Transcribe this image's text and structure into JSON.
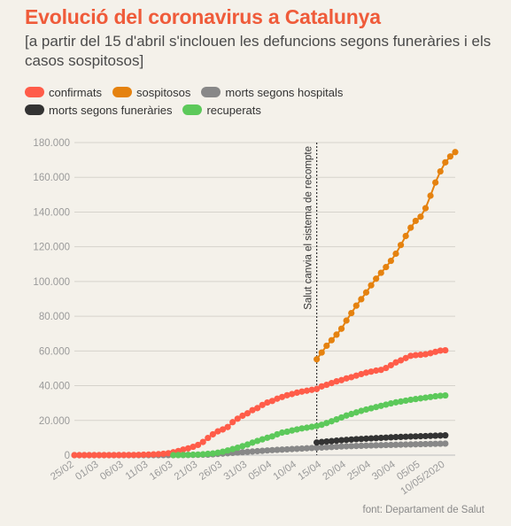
{
  "title": "Evolució del coronavirus a Catalunya",
  "subtitle": "[a partir del 15 d'abril s'inclouen les defuncions segons funeràries i els casos sospitosos]",
  "source": "font: Departament de Salut",
  "chart_data": {
    "type": "line",
    "title": "Evolució del coronavirus a Catalunya",
    "x_start": "25/02/2020",
    "x_end": "10/05/2020",
    "x_tick_labels": [
      "25/02",
      "01/03",
      "06/03",
      "11/03",
      "16/03",
      "21/03",
      "26/03",
      "31/03",
      "05/04",
      "10/04",
      "15/04",
      "20/04",
      "25/04",
      "30/04",
      "05/05",
      "10/05/2020"
    ],
    "y_tick_labels": [
      "0",
      "20.000",
      "40.000",
      "60.000",
      "80.000",
      "100.000",
      "120.000",
      "140.000",
      "160.000",
      "180.000"
    ],
    "ylim": [
      0,
      180000
    ],
    "grid": "horizontal",
    "legend_position": "top-left",
    "annotation": {
      "text": "Salut canvia el sistema de recompte",
      "x": "14/04"
    },
    "series": [
      {
        "name": "confirmats",
        "color": "#ff5c49",
        "points": [
          [
            "25/02",
            1
          ],
          [
            "26/02",
            2
          ],
          [
            "27/02",
            3
          ],
          [
            "28/02",
            4
          ],
          [
            "29/02",
            6
          ],
          [
            "01/03",
            10
          ],
          [
            "02/03",
            13
          ],
          [
            "03/03",
            18
          ],
          [
            "04/03",
            30
          ],
          [
            "05/03",
            45
          ],
          [
            "06/03",
            60
          ],
          [
            "07/03",
            75
          ],
          [
            "08/03",
            100
          ],
          [
            "09/03",
            160
          ],
          [
            "10/03",
            250
          ],
          [
            "11/03",
            320
          ],
          [
            "12/03",
            430
          ],
          [
            "13/03",
            560
          ],
          [
            "14/03",
            800
          ],
          [
            "15/03",
            1100
          ],
          [
            "16/03",
            1700
          ],
          [
            "17/03",
            2400
          ],
          [
            "18/03",
            3200
          ],
          [
            "19/03",
            3900
          ],
          [
            "20/03",
            4800
          ],
          [
            "21/03",
            5900
          ],
          [
            "22/03",
            7600
          ],
          [
            "23/03",
            9900
          ],
          [
            "24/03",
            12000
          ],
          [
            "25/03",
            13700
          ],
          [
            "26/03",
            14800
          ],
          [
            "27/03",
            16200
          ],
          [
            "28/03",
            19000
          ],
          [
            "29/03",
            21000
          ],
          [
            "30/03",
            22700
          ],
          [
            "31/03",
            24100
          ],
          [
            "01/04",
            25900
          ],
          [
            "02/04",
            27100
          ],
          [
            "03/04",
            28900
          ],
          [
            "04/04",
            30300
          ],
          [
            "05/04",
            31200
          ],
          [
            "06/04",
            32500
          ],
          [
            "07/04",
            33500
          ],
          [
            "08/04",
            34500
          ],
          [
            "09/04",
            35200
          ],
          [
            "10/04",
            36000
          ],
          [
            "11/04",
            36600
          ],
          [
            "12/04",
            37100
          ],
          [
            "13/04",
            37600
          ],
          [
            "14/04",
            38100
          ],
          [
            "15/04",
            39600
          ],
          [
            "16/04",
            40500
          ],
          [
            "17/04",
            41500
          ],
          [
            "18/04",
            42500
          ],
          [
            "19/04",
            43200
          ],
          [
            "20/04",
            44200
          ],
          [
            "21/04",
            44900
          ],
          [
            "22/04",
            45800
          ],
          [
            "23/04",
            46700
          ],
          [
            "24/04",
            47500
          ],
          [
            "25/04",
            48100
          ],
          [
            "26/04",
            48700
          ],
          [
            "27/04",
            49100
          ],
          [
            "28/04",
            50200
          ],
          [
            "29/04",
            51800
          ],
          [
            "30/04",
            53400
          ],
          [
            "01/05",
            54600
          ],
          [
            "02/05",
            55900
          ],
          [
            "03/05",
            57200
          ],
          [
            "04/05",
            57600
          ],
          [
            "05/05",
            57800
          ],
          [
            "06/05",
            58100
          ],
          [
            "07/05",
            58700
          ],
          [
            "08/05",
            59500
          ],
          [
            "09/05",
            60200
          ],
          [
            "10/05",
            60400
          ]
        ]
      },
      {
        "name": "sospitosos",
        "color": "#e5820f",
        "points": [
          [
            "14/04",
            55200
          ],
          [
            "15/04",
            59100
          ],
          [
            "16/04",
            63000
          ],
          [
            "17/04",
            66200
          ],
          [
            "18/04",
            69400
          ],
          [
            "19/04",
            72800
          ],
          [
            "20/04",
            77500
          ],
          [
            "21/04",
            81800
          ],
          [
            "22/04",
            86100
          ],
          [
            "23/04",
            89800
          ],
          [
            "24/04",
            93700
          ],
          [
            "25/04",
            97800
          ],
          [
            "26/04",
            101600
          ],
          [
            "27/04",
            105000
          ],
          [
            "28/04",
            108300
          ],
          [
            "29/04",
            111900
          ],
          [
            "30/04",
            116000
          ],
          [
            "01/05",
            121000
          ],
          [
            "02/05",
            126200
          ],
          [
            "03/05",
            131000
          ],
          [
            "04/05",
            134900
          ],
          [
            "05/05",
            137300
          ],
          [
            "06/05",
            142200
          ],
          [
            "07/05",
            149400
          ],
          [
            "08/05",
            157000
          ],
          [
            "09/05",
            163400
          ],
          [
            "10/05",
            168600
          ],
          [
            "11/05",
            172000
          ],
          [
            "12/05",
            174500
          ]
        ]
      },
      {
        "name": "morts segons hospitals",
        "color": "#888888",
        "points": [
          [
            "25/02",
            0
          ],
          [
            "26/02",
            0
          ],
          [
            "27/02",
            0
          ],
          [
            "28/02",
            0
          ],
          [
            "29/02",
            0
          ],
          [
            "01/03",
            0
          ],
          [
            "02/03",
            0
          ],
          [
            "03/03",
            0
          ],
          [
            "04/03",
            0
          ],
          [
            "05/03",
            0
          ],
          [
            "06/03",
            0
          ],
          [
            "07/03",
            0
          ],
          [
            "08/03",
            0
          ],
          [
            "09/03",
            2
          ],
          [
            "10/03",
            3
          ],
          [
            "11/03",
            5
          ],
          [
            "12/03",
            10
          ],
          [
            "13/03",
            15
          ],
          [
            "14/03",
            25
          ],
          [
            "15/03",
            40
          ],
          [
            "16/03",
            55
          ],
          [
            "17/03",
            75
          ],
          [
            "18/03",
            90
          ],
          [
            "19/03",
            110
          ],
          [
            "20/03",
            160
          ],
          [
            "21/03",
            210
          ],
          [
            "22/03",
            250
          ],
          [
            "23/03",
            300
          ],
          [
            "24/03",
            500
          ],
          [
            "25/03",
            700
          ],
          [
            "26/03",
            900
          ],
          [
            "27/03",
            1100
          ],
          [
            "28/03",
            1300
          ],
          [
            "29/03",
            1500
          ],
          [
            "30/03",
            1700
          ],
          [
            "31/03",
            1900
          ],
          [
            "01/04",
            2100
          ],
          [
            "02/04",
            2300
          ],
          [
            "03/04",
            2500
          ],
          [
            "04/04",
            2700
          ],
          [
            "05/04",
            2900
          ],
          [
            "06/04",
            3050
          ],
          [
            "07/04",
            3200
          ],
          [
            "08/04",
            3350
          ],
          [
            "09/04",
            3500
          ],
          [
            "10/04",
            3650
          ],
          [
            "11/04",
            3800
          ],
          [
            "12/04",
            3950
          ],
          [
            "13/04",
            4100
          ],
          [
            "14/04",
            4250
          ],
          [
            "15/04",
            4400
          ],
          [
            "16/04",
            4550
          ],
          [
            "17/04",
            4700
          ],
          [
            "18/04",
            4850
          ],
          [
            "19/04",
            5000
          ],
          [
            "20/04",
            5100
          ],
          [
            "21/04",
            5200
          ],
          [
            "22/04",
            5300
          ],
          [
            "23/04",
            5400
          ],
          [
            "24/04",
            5500
          ],
          [
            "25/04",
            5580
          ],
          [
            "26/04",
            5660
          ],
          [
            "27/04",
            5740
          ],
          [
            "28/04",
            5820
          ],
          [
            "29/04",
            5900
          ],
          [
            "30/04",
            5980
          ],
          [
            "01/05",
            6050
          ],
          [
            "02/05",
            6120
          ],
          [
            "03/05",
            6190
          ],
          [
            "04/05",
            6260
          ],
          [
            "05/05",
            6330
          ],
          [
            "06/05",
            6400
          ],
          [
            "07/05",
            6470
          ],
          [
            "08/05",
            6540
          ],
          [
            "09/05",
            6600
          ],
          [
            "10/05",
            6660
          ]
        ]
      },
      {
        "name": "morts segons funeràries",
        "color": "#333333",
        "points": [
          [
            "14/04",
            7300
          ],
          [
            "15/04",
            7600
          ],
          [
            "16/04",
            7850
          ],
          [
            "17/04",
            8100
          ],
          [
            "18/04",
            8350
          ],
          [
            "19/04",
            8600
          ],
          [
            "20/04",
            8800
          ],
          [
            "21/04",
            9000
          ],
          [
            "22/04",
            9200
          ],
          [
            "23/04",
            9350
          ],
          [
            "24/04",
            9500
          ],
          [
            "25/04",
            9650
          ],
          [
            "26/04",
            9800
          ],
          [
            "27/04",
            9950
          ],
          [
            "28/04",
            10100
          ],
          [
            "29/04",
            10250
          ],
          [
            "30/04",
            10400
          ],
          [
            "01/05",
            10500
          ],
          [
            "02/05",
            10600
          ],
          [
            "03/05",
            10700
          ],
          [
            "04/05",
            10800
          ],
          [
            "05/05",
            10900
          ],
          [
            "06/05",
            11000
          ],
          [
            "07/05",
            11100
          ],
          [
            "08/05",
            11200
          ],
          [
            "09/05",
            11300
          ],
          [
            "10/05",
            11400
          ]
        ]
      },
      {
        "name": "recuperats",
        "color": "#5cc95a",
        "points": [
          [
            "16/03",
            0
          ],
          [
            "17/03",
            50
          ],
          [
            "18/03",
            100
          ],
          [
            "19/03",
            150
          ],
          [
            "20/03",
            250
          ],
          [
            "21/03",
            350
          ],
          [
            "22/03",
            500
          ],
          [
            "23/03",
            750
          ],
          [
            "24/03",
            1000
          ],
          [
            "25/03",
            1400
          ],
          [
            "26/03",
            2000
          ],
          [
            "27/03",
            2700
          ],
          [
            "28/03",
            3500
          ],
          [
            "29/03",
            4300
          ],
          [
            "30/03",
            5200
          ],
          [
            "31/03",
            6100
          ],
          [
            "01/04",
            7200
          ],
          [
            "02/04",
            8200
          ],
          [
            "03/04",
            9100
          ],
          [
            "04/04",
            10000
          ],
          [
            "05/04",
            10800
          ],
          [
            "06/04",
            12000
          ],
          [
            "07/04",
            13000
          ],
          [
            "08/04",
            13500
          ],
          [
            "09/04",
            14200
          ],
          [
            "10/04",
            14800
          ],
          [
            "11/04",
            15400
          ],
          [
            "12/04",
            15800
          ],
          [
            "13/04",
            16300
          ],
          [
            "14/04",
            16800
          ],
          [
            "15/04",
            17500
          ],
          [
            "16/04",
            18500
          ],
          [
            "17/04",
            19500
          ],
          [
            "18/04",
            20600
          ],
          [
            "19/04",
            21700
          ],
          [
            "20/04",
            22800
          ],
          [
            "21/04",
            23700
          ],
          [
            "22/04",
            24600
          ],
          [
            "23/04",
            25500
          ],
          [
            "24/04",
            26300
          ],
          [
            "25/04",
            27000
          ],
          [
            "26/04",
            27700
          ],
          [
            "27/04",
            28400
          ],
          [
            "28/04",
            29100
          ],
          [
            "29/04",
            29800
          ],
          [
            "30/04",
            30400
          ],
          [
            "01/05",
            30900
          ],
          [
            "02/05",
            31400
          ],
          [
            "03/05",
            31900
          ],
          [
            "04/05",
            32300
          ],
          [
            "05/05",
            32700
          ],
          [
            "06/05",
            33100
          ],
          [
            "07/05",
            33500
          ],
          [
            "08/05",
            33900
          ],
          [
            "09/05",
            34200
          ],
          [
            "10/05",
            34400
          ]
        ]
      }
    ]
  }
}
